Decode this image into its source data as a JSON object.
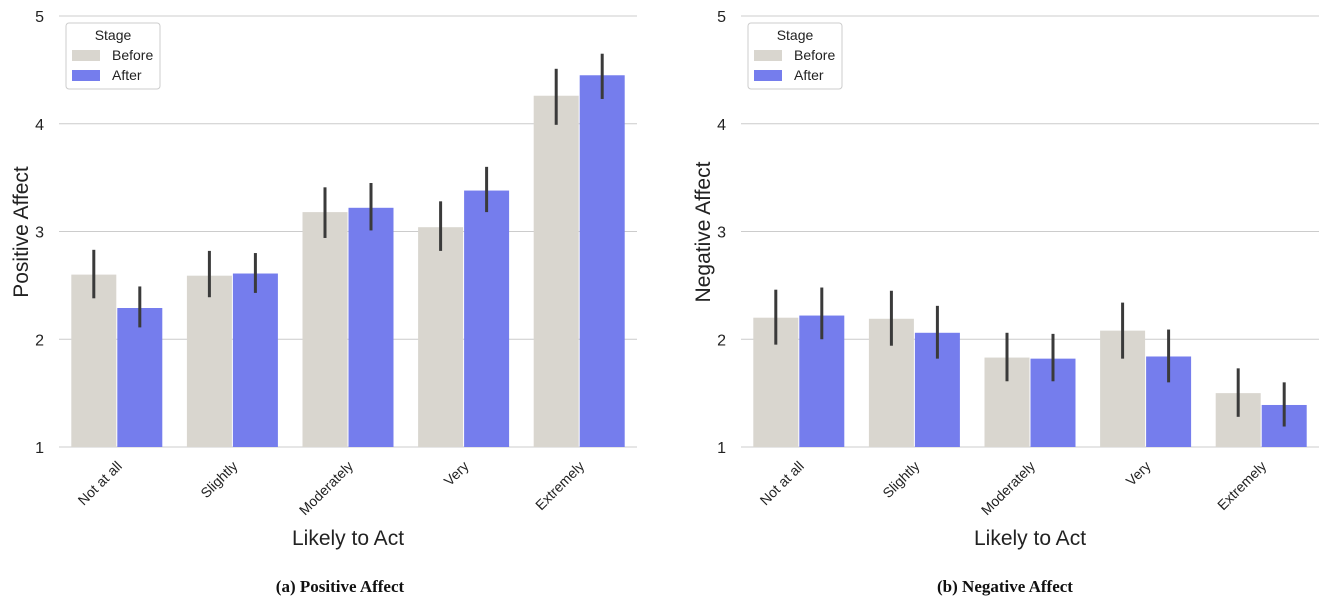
{
  "legend": {
    "title": "Stage",
    "entries": [
      {
        "label": "Before",
        "color": "#d9d6cf"
      },
      {
        "label": "After",
        "color": "#757ded"
      }
    ]
  },
  "colors": {
    "before": "#d9d6cf",
    "after": "#757ded",
    "error_bar": "#3a3a3a",
    "grid": "#cccccc"
  },
  "chart_data": [
    {
      "type": "bar",
      "caption": "(a) Positive Affect",
      "xlabel": "Likely to Act",
      "ylabel": "Positive Affect",
      "ylim": [
        1,
        5
      ],
      "yticks": [
        1,
        2,
        3,
        4,
        5
      ],
      "grid": "horizontal",
      "legend_position": "top-left",
      "categories": [
        "Not at all",
        "Slightly",
        "Moderately",
        "Very",
        "Extremely"
      ],
      "series": [
        {
          "name": "Before",
          "values": [
            2.6,
            2.59,
            3.18,
            3.04,
            4.26
          ],
          "ci_low": [
            2.38,
            2.39,
            2.94,
            2.82,
            3.99
          ],
          "ci_high": [
            2.83,
            2.82,
            3.41,
            3.28,
            4.51
          ]
        },
        {
          "name": "After",
          "values": [
            2.29,
            2.61,
            3.22,
            3.38,
            4.45
          ],
          "ci_low": [
            2.11,
            2.43,
            3.01,
            3.18,
            4.23
          ],
          "ci_high": [
            2.49,
            2.8,
            3.45,
            3.6,
            4.65
          ]
        }
      ]
    },
    {
      "type": "bar",
      "caption": "(b) Negative Affect",
      "xlabel": "Likely to Act",
      "ylabel": "Negative Affect",
      "ylim": [
        1,
        5
      ],
      "yticks": [
        1,
        2,
        3,
        4,
        5
      ],
      "grid": "horizontal",
      "legend_position": "top-left",
      "categories": [
        "Not at all",
        "Slightly",
        "Moderately",
        "Very",
        "Extremely"
      ],
      "series": [
        {
          "name": "Before",
          "values": [
            2.2,
            2.19,
            1.83,
            2.08,
            1.5
          ],
          "ci_low": [
            1.95,
            1.94,
            1.61,
            1.82,
            1.28
          ],
          "ci_high": [
            2.46,
            2.45,
            2.06,
            2.34,
            1.73
          ]
        },
        {
          "name": "After",
          "values": [
            2.22,
            2.06,
            1.82,
            1.84,
            1.39
          ],
          "ci_low": [
            2.0,
            1.82,
            1.61,
            1.6,
            1.19
          ],
          "ci_high": [
            2.48,
            2.31,
            2.05,
            2.09,
            1.6
          ]
        }
      ]
    }
  ]
}
